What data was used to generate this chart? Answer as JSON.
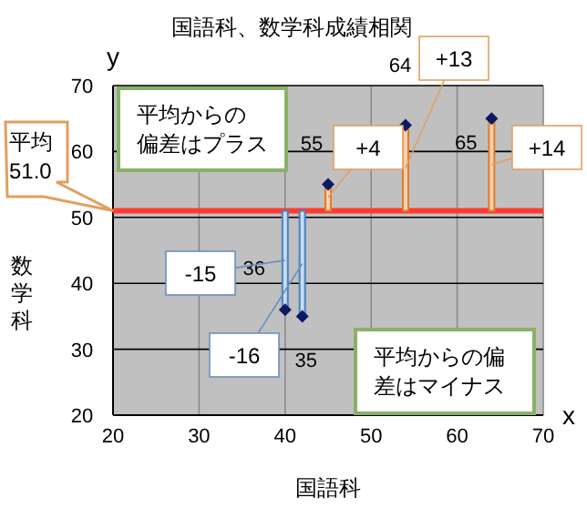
{
  "chart_data": {
    "type": "scatter",
    "title": "国語科、数学科成績相関",
    "xlabel": "国語科",
    "ylabel": "数学科",
    "x": [
      45,
      54,
      64,
      40,
      42
    ],
    "series": [
      {
        "type": "lollipop",
        "color": "#0d1a63",
        "values": [
          55,
          64,
          65,
          36,
          35
        ]
      }
    ],
    "data_labels": true,
    "marker": "diamond",
    "grid": true,
    "xlim": [
      20,
      70
    ],
    "ylim": [
      20,
      70
    ],
    "xticks": [
      20,
      30,
      40,
      50,
      60,
      70
    ],
    "yticks": [
      20,
      30,
      40,
      50,
      60,
      70
    ],
    "ref_lines": [
      {
        "axis": "y",
        "value": 51.0,
        "color": "#ff3b2f"
      }
    ],
    "annotations": [
      "+4",
      "+13",
      "+14",
      "-15",
      "-16",
      "平均 51.0",
      "平均からの偏差はプラス",
      "平均からの偏差はマイナス",
      "x",
      "y"
    ]
  }
}
